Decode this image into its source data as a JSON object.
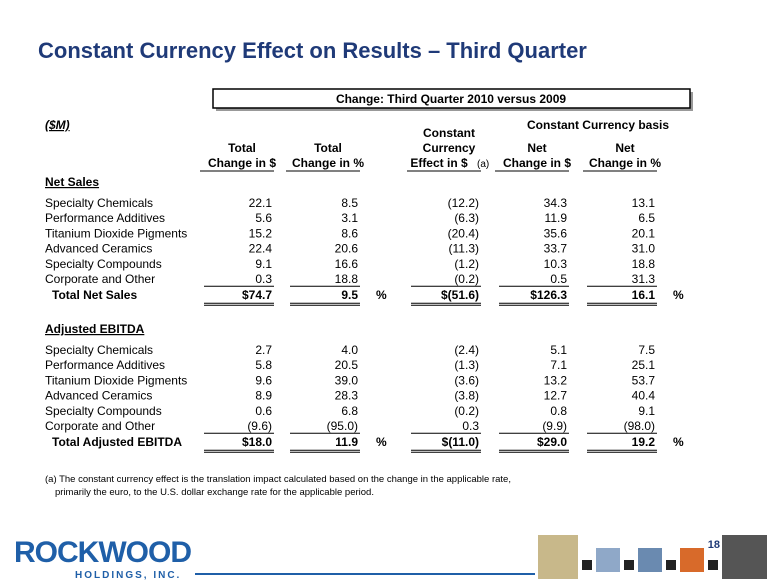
{
  "title": "Constant Currency Effect on Results – Third Quarter",
  "banner": "Change: Third Quarter 2010 versus 2009",
  "unit_label": "($M)",
  "group_header": "Constant Currency basis",
  "columns": [
    {
      "lines": [
        "Total",
        "Change in $"
      ]
    },
    {
      "lines": [
        "Total",
        "Change in %"
      ]
    },
    {
      "lines": [
        "Constant",
        "Currency",
        "Effect in $"
      ],
      "note": "(a)"
    },
    {
      "lines": [
        "Net",
        "Change in $"
      ]
    },
    {
      "lines": [
        "Net",
        "Change in %"
      ]
    }
  ],
  "sections": [
    {
      "heading": "Net Sales",
      "rows": [
        {
          "label": "Specialty Chemicals",
          "cells": [
            "22.1",
            "8.5",
            "(12.2)",
            "34.3",
            "13.1"
          ]
        },
        {
          "label": "Performance Additives",
          "cells": [
            "5.6",
            "3.1",
            "(6.3)",
            "11.9",
            "6.5"
          ]
        },
        {
          "label": "Titanium Dioxide Pigments",
          "cells": [
            "15.2",
            "8.6",
            "(20.4)",
            "35.6",
            "20.1"
          ]
        },
        {
          "label": "Advanced Ceramics",
          "cells": [
            "22.4",
            "20.6",
            "(11.3)",
            "33.7",
            "31.0"
          ]
        },
        {
          "label": "Specialty Compounds",
          "cells": [
            "9.1",
            "16.6",
            "(1.2)",
            "10.3",
            "18.8"
          ]
        },
        {
          "label": "Corporate and Other",
          "cells": [
            "0.3",
            "18.8",
            "(0.2)",
            "0.5",
            "31.3"
          ]
        }
      ],
      "total": {
        "label": "Total Net Sales",
        "cells": [
          "$74.7",
          "9.5",
          "$(51.6)",
          "$126.3",
          "16.1"
        ],
        "percent_signs": [
          "%",
          "%"
        ]
      }
    },
    {
      "heading": "Adjusted EBITDA",
      "rows": [
        {
          "label": "Specialty Chemicals",
          "cells": [
            "2.7",
            "4.0",
            "(2.4)",
            "5.1",
            "7.5"
          ]
        },
        {
          "label": "Performance Additives",
          "cells": [
            "5.8",
            "20.5",
            "(1.3)",
            "7.1",
            "25.1"
          ]
        },
        {
          "label": "Titanium Dioxide Pigments",
          "cells": [
            "9.6",
            "39.0",
            "(3.6)",
            "13.2",
            "53.7"
          ]
        },
        {
          "label": "Advanced Ceramics",
          "cells": [
            "8.9",
            "28.3",
            "(3.8)",
            "12.7",
            "40.4"
          ]
        },
        {
          "label": "Specialty Compounds",
          "cells": [
            "0.6",
            "6.8",
            "(0.2)",
            "0.8",
            "9.1"
          ]
        },
        {
          "label": "Corporate and Other",
          "cells": [
            "(9.6)",
            "(95.0)",
            "0.3",
            "(9.9)",
            "(98.0)"
          ]
        }
      ],
      "total": {
        "label": "Total Adjusted EBITDA",
        "cells": [
          "$18.0",
          "11.9",
          "$(11.0)",
          "$29.0",
          "19.2"
        ],
        "percent_signs": [
          "%",
          "%"
        ]
      }
    }
  ],
  "footnote": [
    "(a) The constant currency effect is the translation impact calculated based on the change in the applicable rate,",
    "primarily the euro, to the U.S. dollar exchange rate for the applicable period."
  ],
  "logo": {
    "name": "ROCKWOOD",
    "sub": "HOLDINGS, INC."
  },
  "page_number": "18"
}
